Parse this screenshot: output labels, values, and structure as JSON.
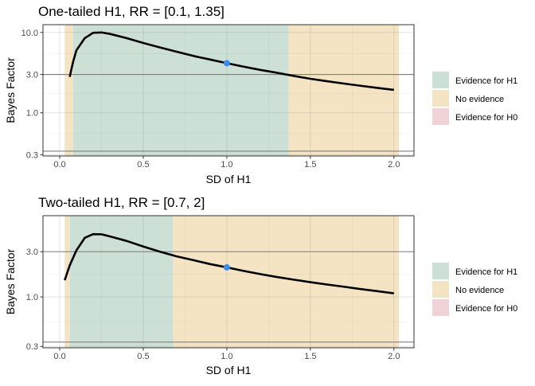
{
  "colors": {
    "evidence_h1": "#cde0d6",
    "no_evidence": "#f5e4c4",
    "evidence_h0": "#efd3d7",
    "curve": "#000000",
    "point": "#3b8cf0",
    "threshold_line": "#7f7f7f"
  },
  "chart_data": [
    {
      "type": "line",
      "title": "One-tailed H1, RR = [0.1, 1.35]",
      "xlabel": "SD of H1",
      "ylabel": "Bayes Factor",
      "x_scale": "linear",
      "y_scale": "log",
      "xlim": [
        -0.1,
        2.12
      ],
      "ylim": [
        0.29,
        12.5
      ],
      "x_ticks": [
        0.0,
        0.5,
        1.0,
        1.5,
        2.0
      ],
      "x_tick_labels": [
        "0.0",
        "0.5",
        "1.0",
        "1.5",
        "2.0"
      ],
      "y_ticks": [
        0.3,
        1.0,
        3.0,
        10.0
      ],
      "y_tick_labels": [
        "0.3",
        "1.0",
        "3.0",
        "10.0"
      ],
      "threshold_lines": [
        3.0,
        0.3333
      ],
      "grid": true,
      "regions": [
        {
          "label": "No evidence",
          "x_start": 0.03,
          "x_end": 0.08
        },
        {
          "label": "Evidence for H1",
          "x_start": 0.08,
          "x_end": 1.37
        },
        {
          "label": "No evidence",
          "x_start": 1.37,
          "x_end": 2.03
        }
      ],
      "series": [
        {
          "x": [
            0.06,
            0.08,
            0.1,
            0.15,
            0.2,
            0.25,
            0.3,
            0.4,
            0.5,
            0.6,
            0.7,
            0.8,
            0.9,
            1.0,
            1.1,
            1.2,
            1.3,
            1.4,
            1.5,
            1.6,
            1.7,
            1.8,
            1.9,
            2.0
          ],
          "y": [
            2.8,
            4.3,
            6.0,
            8.5,
            9.9,
            10.0,
            9.6,
            8.5,
            7.4,
            6.5,
            5.75,
            5.1,
            4.6,
            4.15,
            3.75,
            3.42,
            3.15,
            2.88,
            2.65,
            2.47,
            2.31,
            2.17,
            2.04,
            1.93
          ]
        }
      ],
      "highlight_point": {
        "x": 1.0,
        "y": 4.15
      }
    },
    {
      "type": "line",
      "title": "Two-tailed H1, RR = [0.7, 2]",
      "xlabel": "SD of H1",
      "ylabel": "Bayes Factor",
      "x_scale": "linear",
      "y_scale": "log",
      "xlim": [
        -0.1,
        2.12
      ],
      "ylim": [
        0.29,
        7.2
      ],
      "x_ticks": [
        0.0,
        0.5,
        1.0,
        1.5,
        2.0
      ],
      "x_tick_labels": [
        "0.0",
        "0.5",
        "1.0",
        "1.5",
        "2.0"
      ],
      "y_ticks": [
        0.3,
        1.0,
        3.0
      ],
      "y_tick_labels": [
        "0.3",
        "1.0",
        "3.0"
      ],
      "threshold_lines": [
        3.0,
        0.3333
      ],
      "grid": true,
      "regions": [
        {
          "label": "No evidence",
          "x_start": 0.03,
          "x_end": 0.06
        },
        {
          "label": "Evidence for H1",
          "x_start": 0.06,
          "x_end": 0.68
        },
        {
          "label": "No evidence",
          "x_start": 0.68,
          "x_end": 2.03
        }
      ],
      "series": [
        {
          "x": [
            0.03,
            0.06,
            0.1,
            0.15,
            0.2,
            0.25,
            0.3,
            0.4,
            0.5,
            0.6,
            0.7,
            0.8,
            0.9,
            1.0,
            1.1,
            1.2,
            1.3,
            1.4,
            1.5,
            1.6,
            1.7,
            1.8,
            1.9,
            2.0
          ],
          "y": [
            1.5,
            2.15,
            3.1,
            4.2,
            4.6,
            4.58,
            4.35,
            3.9,
            3.4,
            3.0,
            2.68,
            2.44,
            2.22,
            2.05,
            1.88,
            1.74,
            1.62,
            1.52,
            1.43,
            1.35,
            1.28,
            1.21,
            1.15,
            1.09
          ]
        }
      ],
      "highlight_point": {
        "x": 1.0,
        "y": 2.05
      }
    }
  ],
  "legends": [
    {
      "items": [
        {
          "label": "Evidence for H1",
          "color": "#cde0d6"
        },
        {
          "label": "No evidence",
          "color": "#f5e4c4"
        },
        {
          "label": "Evidence for H0",
          "color": "#efd3d7"
        }
      ]
    },
    {
      "items": [
        {
          "label": "Evidence for H1",
          "color": "#cde0d6"
        },
        {
          "label": "No evidence",
          "color": "#f5e4c4"
        },
        {
          "label": "Evidence for H0",
          "color": "#efd3d7"
        }
      ]
    }
  ]
}
